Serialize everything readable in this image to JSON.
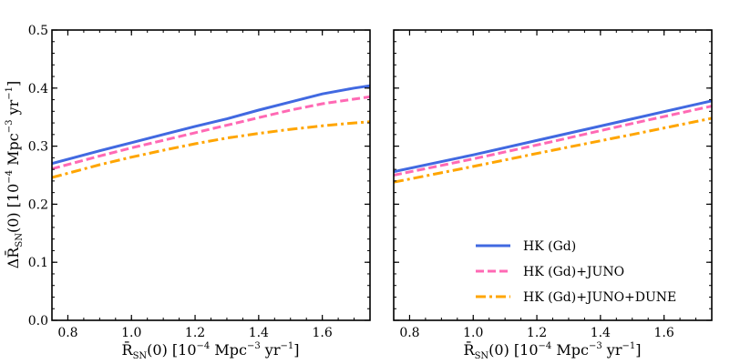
{
  "chart_data": {
    "type": "line",
    "ylabel": {
      "prefix": "Δ",
      "main": "R̄",
      "sub": "SN",
      "rest": "(0) [10",
      "exp1": "−4",
      "units": " Mpc",
      "exp2": "−3",
      "yr": " yr",
      "exp3": "−1",
      "close": "]"
    },
    "xlabel": {
      "main": "R̄",
      "sub": "SN",
      "rest": "(0) [10",
      "exp1": "−4",
      "units": " Mpc",
      "exp2": "−3",
      "yr": " yr",
      "exp3": "−1",
      "close": "]"
    },
    "xlim": [
      0.75,
      1.75
    ],
    "ylim": [
      0.0,
      0.5
    ],
    "xticks": [
      "0.8",
      "1.0",
      "1.2",
      "1.4",
      "1.6"
    ],
    "yticks": [
      "0.0",
      "0.1",
      "0.2",
      "0.3",
      "0.4",
      "0.5"
    ],
    "colors": {
      "hk": "#4169e1",
      "juno": "#ff69b4",
      "dune": "#ffa500"
    },
    "legend_entries": [
      "HK (Gd)",
      "HK (Gd)+JUNO",
      "HK (Gd)+JUNO+DUNE"
    ],
    "panels": [
      {
        "name": "left",
        "series": [
          {
            "name": "HK (Gd)",
            "style": "solid",
            "color": "#4169e1",
            "x": [
              0.75,
              0.9,
              1.0,
              1.1,
              1.2,
              1.3,
              1.4,
              1.5,
              1.6,
              1.7,
              1.75
            ],
            "y": [
              0.27,
              0.292,
              0.306,
              0.32,
              0.334,
              0.347,
              0.362,
              0.376,
              0.39,
              0.4,
              0.404
            ]
          },
          {
            "name": "HK (Gd)+JUNO",
            "style": "dashed",
            "color": "#ff69b4",
            "x": [
              0.75,
              0.9,
              1.0,
              1.1,
              1.2,
              1.3,
              1.4,
              1.5,
              1.6,
              1.7,
              1.75
            ],
            "y": [
              0.261,
              0.283,
              0.297,
              0.31,
              0.323,
              0.336,
              0.349,
              0.362,
              0.373,
              0.381,
              0.385
            ]
          },
          {
            "name": "HK (Gd)+JUNO+DUNE",
            "style": "dashdot",
            "color": "#ffa500",
            "x": [
              0.75,
              0.9,
              1.0,
              1.1,
              1.2,
              1.3,
              1.4,
              1.5,
              1.6,
              1.7,
              1.75
            ],
            "y": [
              0.246,
              0.268,
              0.281,
              0.293,
              0.304,
              0.314,
              0.322,
              0.329,
              0.335,
              0.34,
              0.342
            ]
          }
        ]
      },
      {
        "name": "right",
        "series": [
          {
            "name": "HK (Gd)",
            "style": "solid",
            "color": "#4169e1",
            "x": [
              0.75,
              1.0,
              1.25,
              1.5,
              1.75
            ],
            "y": [
              0.256,
              0.285,
              0.316,
              0.347,
              0.378
            ]
          },
          {
            "name": "HK (Gd)+JUNO",
            "style": "dashed",
            "color": "#ff69b4",
            "x": [
              0.75,
              1.0,
              1.25,
              1.5,
              1.75
            ],
            "y": [
              0.25,
              0.278,
              0.308,
              0.339,
              0.369
            ]
          },
          {
            "name": "HK (Gd)+JUNO+DUNE",
            "style": "dashdot",
            "color": "#ffa500",
            "x": [
              0.75,
              1.0,
              1.25,
              1.5,
              1.75
            ],
            "y": [
              0.238,
              0.265,
              0.293,
              0.32,
              0.348
            ]
          }
        ]
      }
    ]
  }
}
